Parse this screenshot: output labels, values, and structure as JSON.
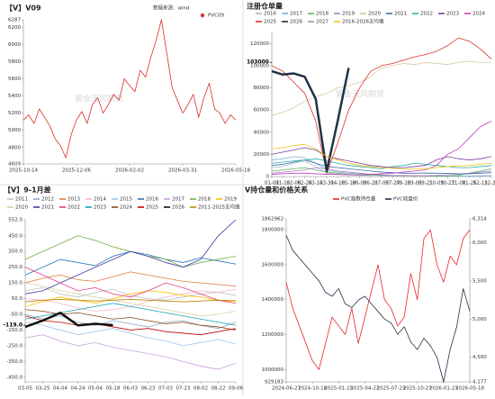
{
  "chart_data": [
    {
      "type": "line",
      "title": "【V】V09",
      "source": "数据来源：wind",
      "watermark": "紫金天风期货",
      "legend_marker": "dot",
      "categories": [
        "2025-10-14",
        null,
        null,
        null,
        null,
        null,
        null,
        null,
        null,
        null,
        "2025-12-06",
        null,
        null,
        null,
        null,
        null,
        null,
        null,
        null,
        null,
        "2026-02-02",
        null,
        null,
        null,
        null,
        null,
        null,
        null,
        null,
        null,
        "2026-03-31",
        null,
        null,
        null,
        null,
        null,
        null,
        null,
        null,
        null,
        "2026-05-18"
      ],
      "series": [
        {
          "name": "PVC09",
          "color": "#d9302a",
          "values": [
            5120,
            5180,
            5080,
            5250,
            5150,
            5050,
            4900,
            4820,
            4680,
            4950,
            5120,
            5220,
            5080,
            5300,
            5380,
            5200,
            5300,
            5420,
            5350,
            5600,
            5520,
            5450,
            5700,
            5620,
            5850,
            6050,
            6287,
            5900,
            5500,
            5350,
            5200,
            5300,
            5420,
            5150,
            5380,
            5550,
            5250,
            5200,
            5080,
            5180,
            5120
          ]
        }
      ],
      "ylim": [
        4609,
        6287
      ],
      "yticks": [
        4609,
        4800,
        5000,
        5200,
        5400,
        5600,
        5800,
        6000,
        6200,
        6287
      ]
    },
    {
      "type": "line",
      "title": "注册仓单量",
      "watermark": "紫金天风期货",
      "marker": 103000,
      "categories": [
        "01-01",
        "01-19",
        "02-06",
        "02-24",
        "03-14",
        "03-31",
        "04-18",
        "05-18",
        "06-05",
        "06-23",
        "07-09",
        "07-27",
        "08-15",
        "09-03",
        "09-21",
        "10-09",
        "10-27",
        "11-08",
        "11-26",
        "12-13",
        "12-31"
      ],
      "series": [
        {
          "name": "2016",
          "color": "#a9b8c6",
          "values": [
            8000,
            9000,
            12000,
            14000,
            9000,
            3000,
            2000,
            1500,
            1000,
            1000,
            800,
            600,
            500,
            500,
            400,
            400,
            300,
            300,
            500,
            800,
            1000
          ]
        },
        {
          "name": "2017",
          "color": "#7fb3d5",
          "values": [
            15000,
            16000,
            18000,
            17000,
            12000,
            6000,
            4000,
            3000,
            2500,
            2000,
            1500,
            1000,
            800,
            600,
            500,
            500,
            400,
            400,
            300,
            300,
            300
          ]
        },
        {
          "name": "2018",
          "color": "#5cb85c",
          "values": [
            5000,
            6000,
            7000,
            8000,
            6000,
            4000,
            3000,
            2000,
            1500,
            1200,
            1000,
            800,
            700,
            600,
            500,
            500,
            500,
            1000,
            3000,
            5000,
            7000
          ]
        },
        {
          "name": "2019",
          "color": "#b07cc6",
          "values": [
            3000,
            4000,
            5000,
            6000,
            8000,
            7000,
            5000,
            4000,
            3000,
            2000,
            1500,
            1000,
            1000,
            800,
            800,
            1000,
            1500,
            2000,
            3000,
            4000,
            5000
          ]
        },
        {
          "name": "2020",
          "color": "#d9c9a0",
          "values": [
            55000,
            58000,
            62000,
            68000,
            72000,
            75000,
            80000,
            82000,
            85000,
            90000,
            98000,
            100000,
            102000,
            101000,
            103000,
            102000,
            101000,
            103000,
            104000,
            103000,
            103000
          ]
        },
        {
          "name": "2021",
          "color": "#3a6fb0",
          "values": [
            10000,
            11000,
            13000,
            15000,
            12000,
            9000,
            8000,
            7000,
            6000,
            5000,
            4000,
            3500,
            3000,
            3000,
            3200,
            3000,
            2800,
            2500,
            2500,
            3000,
            3500
          ]
        },
        {
          "name": "2022",
          "color": "#2bb3a3",
          "values": [
            12000,
            13000,
            14000,
            15000,
            16000,
            14000,
            12000,
            10000,
            9000,
            8000,
            7000,
            9000,
            10000,
            12000,
            11000,
            10000,
            9000,
            8000,
            8000,
            9000,
            10000
          ]
        },
        {
          "name": "2023",
          "color": "#7b3fa0",
          "values": [
            20000,
            22000,
            24000,
            26000,
            24000,
            18000,
            16000,
            14000,
            12000,
            10000,
            9000,
            8000,
            8000,
            9000,
            10000,
            15000,
            18000,
            16000,
            15000,
            16000,
            18000
          ]
        },
        {
          "name": "2024",
          "color": "#c03fbf",
          "values": [
            2000,
            2500,
            3000,
            3000,
            2500,
            2000,
            2000,
            1500,
            1500,
            2000,
            2500,
            3000,
            4000,
            5000,
            6000,
            10000,
            20000,
            25000,
            35000,
            45000,
            50000
          ]
        },
        {
          "name": "2025",
          "color": "#d9302a",
          "values": [
            100000,
            95000,
            85000,
            75000,
            50000,
            3000,
            30000,
            60000,
            80000,
            95000,
            100000,
            102000,
            105000,
            108000,
            110000,
            113000,
            118000,
            125000,
            122000,
            115000,
            106000
          ]
        },
        {
          "name": "2026",
          "color": "#1f3247",
          "width": 2.5,
          "values": [
            95000,
            92000,
            93000,
            90000,
            70000,
            5000,
            50000,
            98000,
            null,
            null,
            null,
            null,
            null,
            null,
            null,
            null,
            null,
            null,
            null,
            null,
            null
          ]
        },
        {
          "name": "2027",
          "color": "#999999",
          "values": [
            null,
            null,
            null,
            null,
            null,
            null,
            null,
            null,
            null,
            null,
            null,
            null,
            null,
            null,
            null,
            null,
            null,
            null,
            null,
            null,
            null
          ]
        },
        {
          "name": "2016-2026五均值",
          "color": "#f0c419",
          "values": [
            25000,
            26000,
            28000,
            29000,
            25000,
            18000,
            15000,
            12000,
            10000,
            9000,
            8000,
            7500,
            7000,
            7000,
            7000,
            8000,
            9000,
            9500,
            10000,
            11000,
            12000
          ]
        }
      ],
      "ylim": [
        0,
        130000
      ],
      "yticks": [
        0,
        20000,
        40000,
        60000,
        80000,
        100000,
        120000
      ]
    },
    {
      "type": "line",
      "title": "【V】9-1月差",
      "marker": {
        "value": -119,
        "label": "-119.0"
      },
      "categories": [
        "03-05",
        "03-25",
        "04-04",
        "04-24",
        "05-04",
        "05-18",
        "06-03",
        "06-23",
        "07-03",
        "07-23",
        "08-02",
        "08-22",
        "09-06"
      ],
      "series": [
        {
          "name": "2011",
          "color": "#c0c0c0",
          "values": [
            100,
            120,
            80,
            60,
            90,
            110,
            70,
            50,
            40,
            60,
            80,
            90,
            70
          ]
        },
        {
          "name": "2012",
          "color": "#8fa8c8",
          "values": [
            -50,
            -80,
            -60,
            -100,
            -120,
            -90,
            -110,
            -130,
            -100,
            -90,
            -120,
            -140,
            -100
          ]
        },
        {
          "name": "2013",
          "color": "#e07b39",
          "values": [
            150,
            180,
            200,
            170,
            160,
            190,
            220,
            200,
            180,
            160,
            150,
            140,
            130
          ]
        },
        {
          "name": "2014",
          "color": "#f2b8c6",
          "values": [
            50,
            40,
            20,
            -10,
            -30,
            -20,
            0,
            30,
            60,
            80,
            100,
            90,
            110
          ]
        },
        {
          "name": "2015",
          "color": "#9dc3e6",
          "values": [
            -100,
            -120,
            -150,
            -180,
            -160,
            -140,
            -170,
            -200,
            -220,
            -250,
            -230,
            -210,
            -240
          ]
        },
        {
          "name": "2016",
          "color": "#2e75b6",
          "values": [
            200,
            250,
            300,
            280,
            260,
            320,
            350,
            330,
            300,
            280,
            310,
            290,
            270
          ]
        },
        {
          "name": "2017",
          "color": "#c9a0dc",
          "values": [
            -200,
            -180,
            -220,
            -250,
            -230,
            -260,
            -280,
            -300,
            -320,
            -350,
            -380,
            -400,
            -360
          ]
        },
        {
          "name": "2018",
          "color": "#70ad47",
          "values": [
            300,
            350,
            400,
            450,
            420,
            380,
            350,
            320,
            300,
            250,
            280,
            300,
            320
          ]
        },
        {
          "name": "2019",
          "color": "#ffc000",
          "values": [
            0,
            30,
            60,
            40,
            20,
            50,
            80,
            100,
            90,
            70,
            60,
            40,
            30
          ]
        },
        {
          "name": "2020",
          "color": "#d4d4a0",
          "values": [
            150,
            130,
            100,
            80,
            60,
            40,
            20,
            0,
            -20,
            -40,
            -60,
            -50,
            -30
          ]
        },
        {
          "name": "2021",
          "color": "#3a3aa8",
          "values": [
            80,
            100,
            150,
            200,
            250,
            300,
            350,
            320,
            280,
            250,
            300,
            450,
            552
          ]
        },
        {
          "name": "2022",
          "color": "#e83e8c",
          "values": [
            250,
            200,
            150,
            100,
            120,
            80,
            60,
            100,
            150,
            120,
            80,
            40,
            20
          ]
        },
        {
          "name": "2023",
          "color": "#17a2b8",
          "values": [
            -80,
            -60,
            -40,
            -20,
            0,
            20,
            0,
            -20,
            -40,
            -60,
            -80,
            -100,
            -120
          ]
        },
        {
          "name": "2024",
          "color": "#8b4513",
          "values": [
            -20,
            -30,
            -50,
            -40,
            -60,
            -80,
            -70,
            -90,
            -110,
            -100,
            -120,
            -130,
            -150
          ]
        },
        {
          "name": "2025",
          "color": "#c00000",
          "values": [
            -60,
            -90,
            -100,
            -120,
            -110,
            -130,
            -150,
            -140,
            -160,
            -170,
            -180,
            -160,
            -140
          ]
        },
        {
          "name": "2026",
          "color": "#111111",
          "width": 2.5,
          "values": [
            -130,
            -90,
            -40,
            -120,
            -110,
            -119,
            null,
            null,
            null,
            null,
            null,
            null,
            null
          ]
        },
        {
          "name": "2011-2025五均值",
          "color": "#b8860b",
          "values": [
            30,
            40,
            45,
            40,
            35,
            40,
            45,
            40,
            35,
            30,
            35,
            40,
            38
          ]
        }
      ],
      "ylim": [
        -480,
        552
      ],
      "yticks": [
        {
          "value": -450,
          "label": "-450.0"
        },
        {
          "value": -350,
          "label": "-350.0"
        },
        {
          "value": -250,
          "label": "-250.0"
        },
        {
          "value": -150,
          "label": "-150.0"
        },
        {
          "value": -50,
          "label": "-50.0"
        },
        {
          "value": 50,
          "label": "50.0"
        },
        {
          "value": 150,
          "label": "150.0"
        },
        {
          "value": 250,
          "label": "250.0"
        },
        {
          "value": 350,
          "label": "350.0"
        },
        {
          "value": 450,
          "label": "450.0"
        },
        {
          "value": 552,
          "label": "552.0"
        }
      ]
    },
    {
      "type": "line",
      "title": "V持仓量和价格关系",
      "categories": [
        "2024-06-27",
        null,
        null,
        null,
        "2024-10-18",
        null,
        null,
        null,
        "2025-01-15",
        null,
        null,
        null,
        "2025-04-22",
        null,
        null,
        null,
        "2025-07-23",
        null,
        null,
        null,
        "2025-10-27",
        null,
        null,
        null,
        "2026-01-23",
        null,
        null,
        null,
        "2026-05-18"
      ],
      "series": [
        {
          "name": "PVC指数持仓量",
          "color": "#e8262a",
          "values": [
            1500000,
            1350000,
            1250000,
            1150000,
            1050000,
            1000000,
            1150000,
            1300000,
            1250000,
            1200000,
            1350000,
            1150000,
            1300000,
            1450000,
            1600000,
            1400000,
            1350000,
            1250000,
            1300000,
            1550000,
            1400000,
            1750000,
            1800000,
            1600000,
            1500000,
            1650000,
            1600000,
            1750000,
            1800000
          ]
        },
        {
          "name": "PVC收盘价",
          "color": "#1f3247",
          "axis": "y2",
          "values": [
            6100,
            5900,
            5800,
            5700,
            5600,
            5500,
            5350,
            5300,
            5400,
            5200,
            5150,
            5250,
            5300,
            5200,
            5100,
            5000,
            4950,
            4800,
            4900,
            4700,
            4600,
            4750,
            4650,
            4500,
            4177,
            4600,
            4900,
            5400,
            5100
          ]
        }
      ],
      "ylim": [
        929183,
        1862962
      ],
      "yticks": [
        929183,
        1000000,
        1200000,
        1400000,
        1600000,
        1800000,
        1862962
      ],
      "y2lim": [
        4177,
        6314
      ],
      "y2ticks": [
        {
          "value": 4177,
          "label": "4,177"
        },
        {
          "value": 4500,
          "label": "4,500"
        },
        {
          "value": 5000,
          "label": "5,000"
        },
        {
          "value": 5500,
          "label": "5,500"
        },
        {
          "value": 6000,
          "label": "6,000"
        },
        {
          "value": 6314,
          "label": "6,314"
        }
      ]
    }
  ]
}
